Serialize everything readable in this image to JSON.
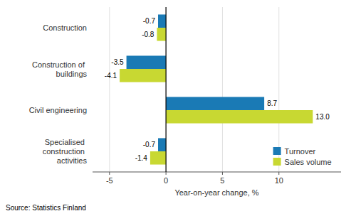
{
  "chart_data": {
    "type": "bar",
    "orientation": "horizontal",
    "categories": [
      "Construction",
      "Construction of buildings",
      "Civil engineering",
      "Specialised construction activities"
    ],
    "series": [
      {
        "name": "Turnover",
        "color": "#1a7ab5",
        "values": [
          -0.7,
          -3.5,
          8.7,
          -0.7
        ]
      },
      {
        "name": "Sales volume",
        "color": "#c8d832",
        "values": [
          -0.8,
          -4.1,
          13.0,
          -1.4
        ],
        "value_labels": [
          "-0.8",
          "-4.1",
          "13.0",
          "-1.4"
        ]
      }
    ],
    "xlabel": "Year-on-year change, %",
    "xlim": [
      -6.5,
      15.5
    ],
    "xticks": [
      -5,
      0,
      5,
      10
    ],
    "grid": true,
    "legend": "lower right",
    "data_labels": true,
    "annotations": [
      "Source: Statistics Finland"
    ]
  }
}
